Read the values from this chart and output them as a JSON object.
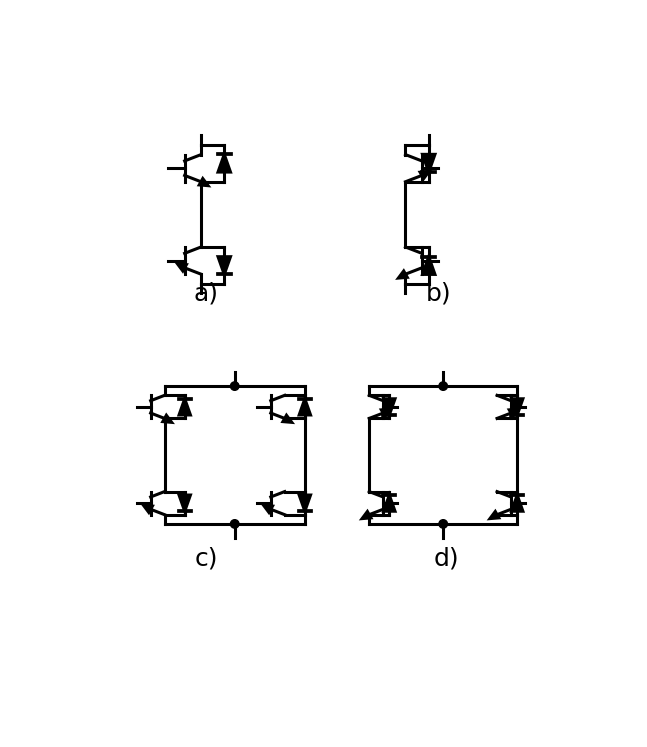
{
  "background": "#ffffff",
  "line_color": "#000000",
  "lw": 2.2,
  "label_fontsize": 18,
  "labels": [
    "a)",
    "b)",
    "c)",
    "d)"
  ],
  "dot_r": 0.055
}
